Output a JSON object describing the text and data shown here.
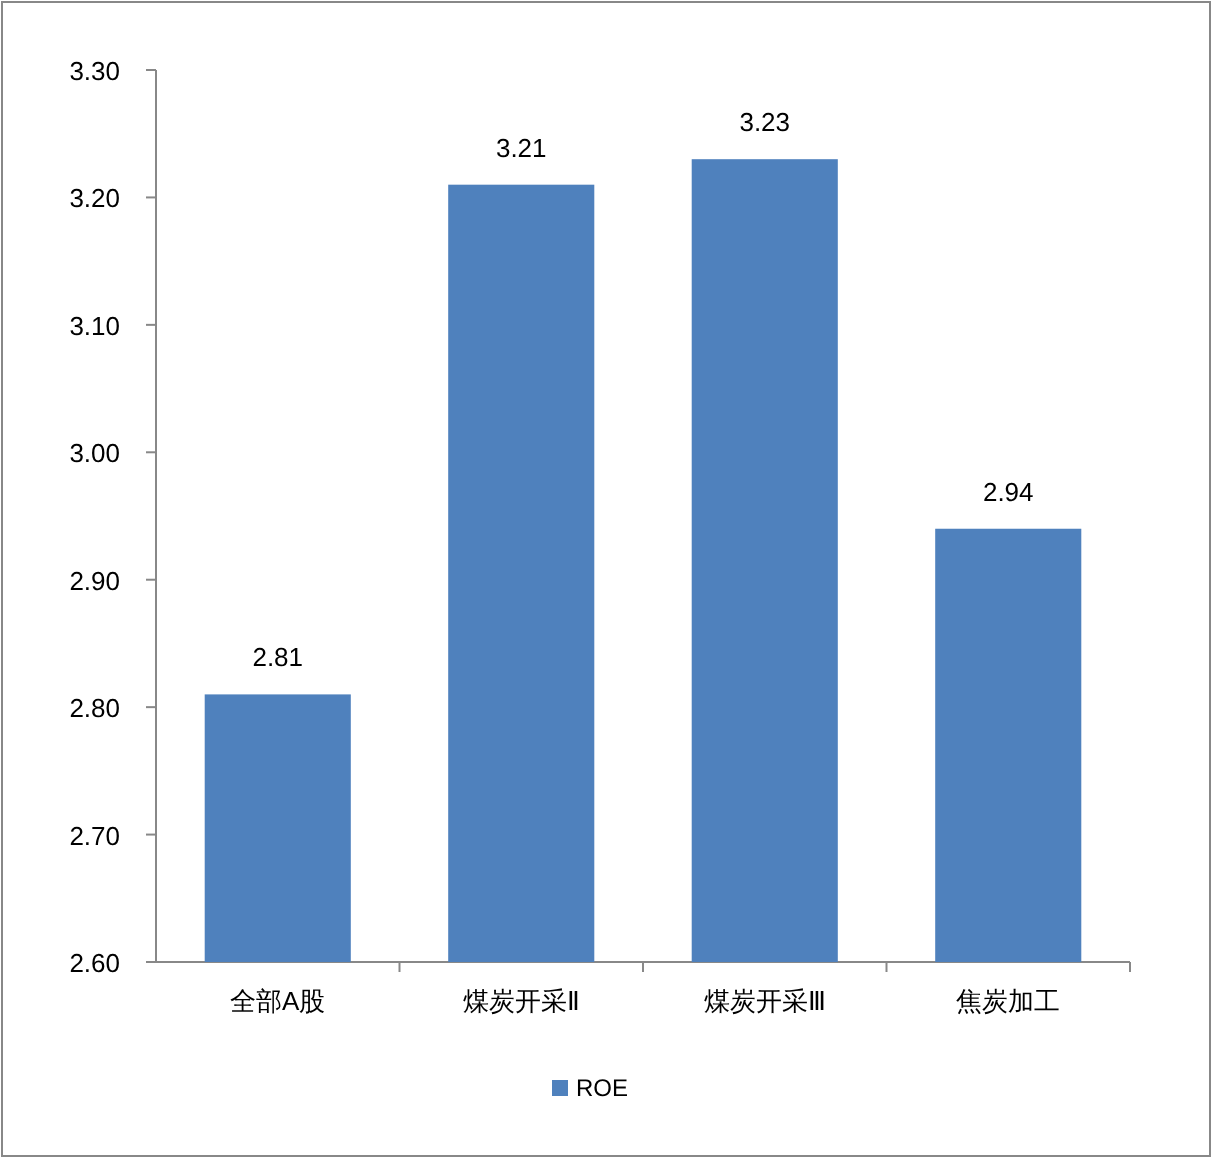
{
  "chart_data": {
    "type": "bar",
    "categories": [
      "全部A股",
      "煤炭开采Ⅱ",
      "煤炭开采Ⅲ",
      "焦炭加工"
    ],
    "series": [
      {
        "name": "ROE",
        "color": "#4f81bd",
        "values": [
          2.81,
          3.21,
          3.23,
          2.94
        ]
      }
    ],
    "ylim": [
      2.6,
      3.3
    ],
    "yticks": [
      {
        "value": 2.6,
        "label": "2.60"
      },
      {
        "value": 2.7,
        "label": "2.70"
      },
      {
        "value": 2.8,
        "label": "2.80"
      },
      {
        "value": 2.9,
        "label": "2.90"
      },
      {
        "value": 3.0,
        "label": "3.00"
      },
      {
        "value": 3.1,
        "label": "3.10"
      },
      {
        "value": 3.2,
        "label": "3.20"
      },
      {
        "value": 3.3,
        "label": "3.30"
      }
    ],
    "data_labels": true,
    "grid": false,
    "legend": "bottom"
  }
}
